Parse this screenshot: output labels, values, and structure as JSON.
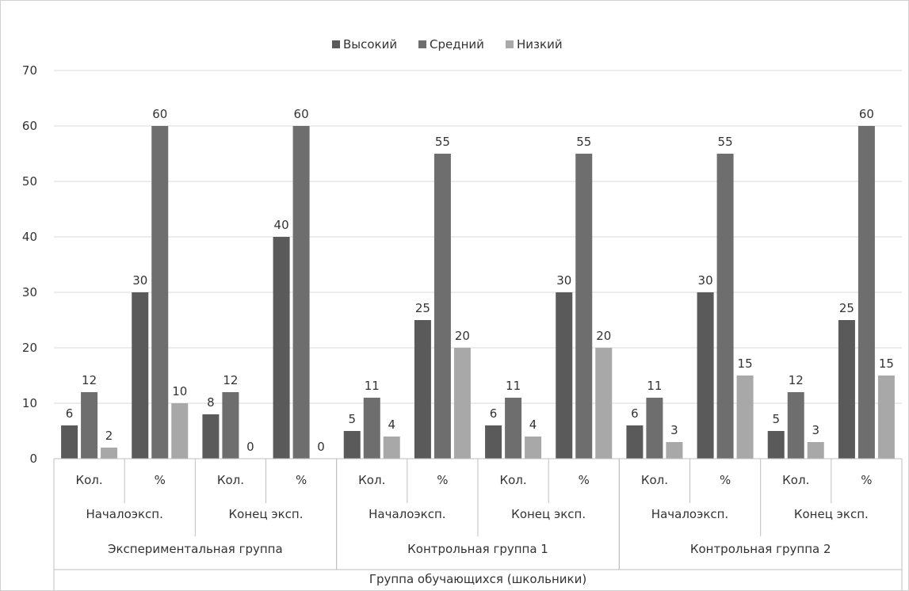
{
  "chart_data": {
    "type": "bar",
    "title": "",
    "xlabel": "",
    "ylabel": "",
    "ylim": [
      0,
      70
    ],
    "y_ticks": [
      0,
      10,
      20,
      30,
      40,
      50,
      60,
      70
    ],
    "grid": true,
    "legend_position": "top",
    "categories": [
      "Кол.",
      "%",
      "Кол.",
      "%",
      "Кол.",
      "%",
      "Кол.",
      "%",
      "Кол.",
      "%",
      "Кол.",
      "%"
    ],
    "category_groups_level2": [
      "Началоэксп.",
      "Конец эксп.",
      "Началоэксп.",
      "Конец эксп.",
      "Началоэксп.",
      "Конец эксп."
    ],
    "category_groups_level3": [
      "Экспериментальная группа",
      "Контрольная группа 1",
      "Контрольная группа 2"
    ],
    "category_groups_level4": [
      "Группа обучающихся (школьники)"
    ],
    "series": [
      {
        "name": "Высокий",
        "color": "#5a5a5a",
        "values": [
          6,
          30,
          8,
          40,
          5,
          25,
          6,
          30,
          6,
          30,
          5,
          25
        ]
      },
      {
        "name": "Средний",
        "color": "#6e6e6e",
        "values": [
          12,
          60,
          12,
          60,
          11,
          55,
          11,
          55,
          11,
          55,
          12,
          60
        ]
      },
      {
        "name": "Низкий",
        "color": "#a8a8a8",
        "values": [
          2,
          10,
          0,
          0,
          4,
          20,
          4,
          20,
          3,
          15,
          3,
          15
        ]
      }
    ]
  }
}
